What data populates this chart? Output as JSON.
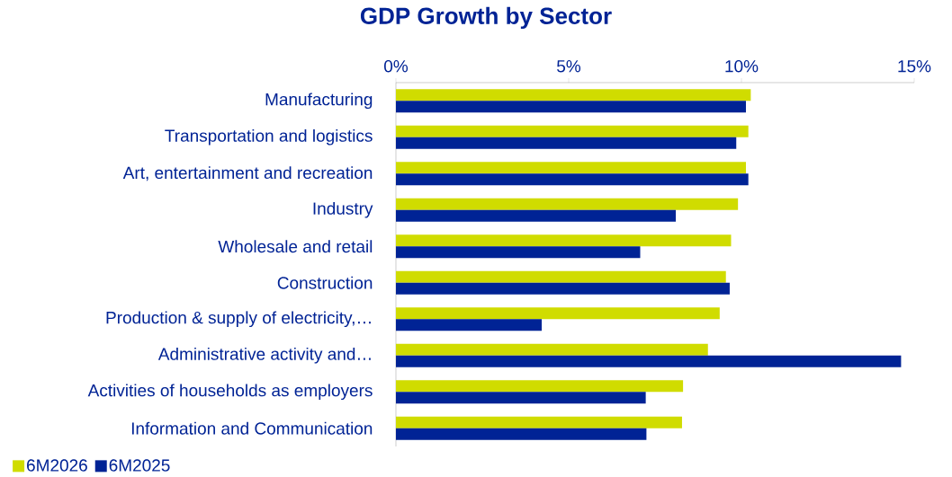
{
  "chart_data": {
    "type": "bar",
    "orientation": "horizontal",
    "title": "GDP Growth by Sector",
    "categories": [
      "Manufacturing",
      "Transportation and logistics",
      "Art, entertainment and recreation",
      "Industry",
      "Wholesale and retail",
      "Construction",
      "Production & supply of electricity,…",
      "Administrative activity and…",
      "Activities of households as employers",
      "Information and Communication"
    ],
    "series": [
      {
        "name": "6M2026",
        "color": "#d0dc00",
        "values": [
          10.27,
          10.2,
          10.13,
          9.9,
          9.7,
          9.55,
          9.37,
          9.03,
          8.31,
          8.28
        ]
      },
      {
        "name": "6M2025",
        "color": "#002395",
        "values": [
          10.13,
          9.85,
          10.2,
          8.1,
          7.07,
          9.66,
          4.22,
          14.62,
          7.23,
          7.25
        ]
      }
    ],
    "xlim": [
      0,
      15
    ],
    "xticks": [
      {
        "value": 0,
        "label": "0%"
      },
      {
        "value": 5,
        "label": "5%"
      },
      {
        "value": 10,
        "label": "10%"
      },
      {
        "value": 15,
        "label": "15%"
      }
    ],
    "legend": "bottom left",
    "grid": false
  }
}
